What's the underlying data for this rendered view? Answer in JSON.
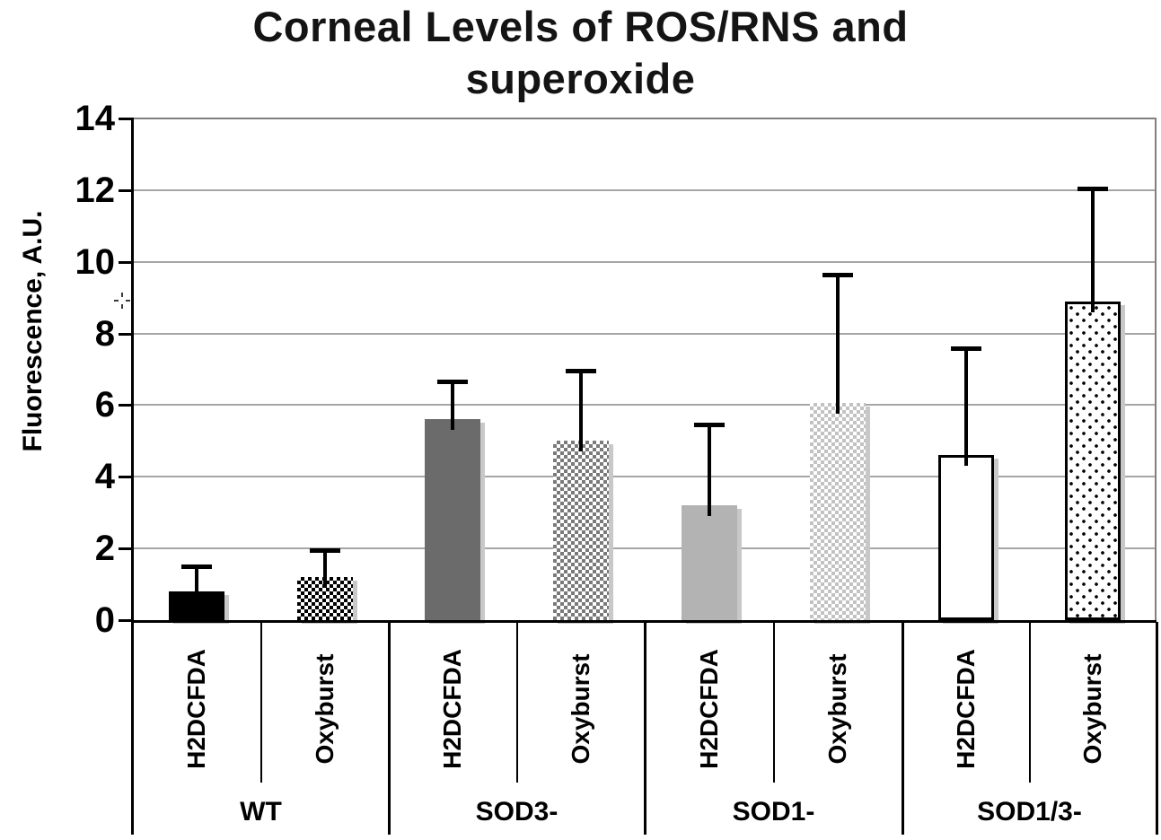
{
  "chart_data": {
    "type": "bar",
    "title_line1": "Corneal Levels of ROS/RNS and",
    "title_line2": "superoxide",
    "ylabel": "Fluorescence, A.U.",
    "xlabel": "",
    "ylim": [
      0,
      14
    ],
    "yticks": [
      0,
      2,
      4,
      6,
      8,
      10,
      12,
      14
    ],
    "grid": "horizontal-major",
    "legend": "none",
    "categories": [
      "WT",
      "SOD3-",
      "SOD1-",
      "SOD1/3-"
    ],
    "series_labels": [
      "H2DCFDA",
      "Oxyburst"
    ],
    "groups": [
      {
        "label": "WT",
        "bars": [
          {
            "label": "H2DCFDA",
            "value": 0.8,
            "error_top": 1.5,
            "style": "solid-black"
          },
          {
            "label": "Oxyburst",
            "value": 1.2,
            "error_top": 1.95,
            "style": "checker-black"
          }
        ]
      },
      {
        "label": "SOD3-",
        "bars": [
          {
            "label": "H2DCFDA",
            "value": 5.6,
            "error_top": 6.65,
            "style": "solid-darkgray"
          },
          {
            "label": "Oxyburst",
            "value": 5.0,
            "error_top": 6.95,
            "style": "checker-gray"
          }
        ]
      },
      {
        "label": "SOD1-",
        "bars": [
          {
            "label": "H2DCFDA",
            "value": 3.2,
            "error_top": 5.45,
            "style": "solid-lightgray"
          },
          {
            "label": "Oxyburst",
            "value": 6.05,
            "error_top": 9.65,
            "style": "checker-lightgray"
          }
        ]
      },
      {
        "label": "SOD1/3-",
        "bars": [
          {
            "label": "H2DCFDA",
            "value": 4.6,
            "error_top": 7.6,
            "style": "outline-white"
          },
          {
            "label": "Oxyburst",
            "value": 8.9,
            "error_top": 12.05,
            "style": "dots-white"
          }
        ]
      }
    ],
    "colors": {
      "bar_black": "#000000",
      "bar_dark_gray": "#6b6b6b",
      "bar_light_gray": "#b3b3b3",
      "checker_gray": "#7a7a7a",
      "checker_light_gray": "#c2c2c2",
      "gridline": "#a6a6a6",
      "frame": "#808080",
      "bar_shadow": "#c8c8c8",
      "text": "#000000",
      "background": "#ffffff"
    }
  }
}
